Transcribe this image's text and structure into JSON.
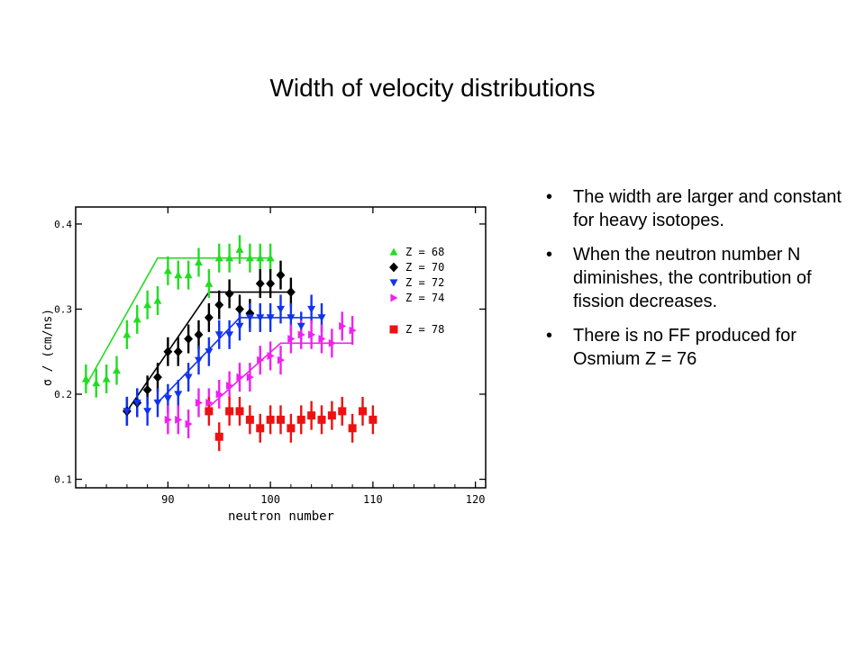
{
  "slide": {
    "title": "Width of velocity distributions",
    "bullets": [
      "The width are larger and constant for heavy isotopes.",
      "When the neutron number N diminishes, the contribution of fission decreases.",
      "There is no FF produced for Osmium Z = 76"
    ]
  },
  "chart_data": {
    "type": "scatter",
    "title": "",
    "xlabel": "neutron number",
    "ylabel": "σ / (cm/ns)",
    "xlim": [
      81,
      121
    ],
    "ylim": [
      0.09,
      0.42
    ],
    "xticks": [
      90,
      100,
      110,
      120
    ],
    "xtick_labels": [
      "90",
      "100",
      "110",
      "120"
    ],
    "yticks": [
      0.1,
      0.2,
      0.3,
      0.4
    ],
    "ytick_labels": [
      "0.1",
      "0.2",
      "0.3",
      "0.4"
    ],
    "grid": false,
    "legend_position": "right",
    "series": [
      {
        "name": "Z = 68",
        "color": "#22dd22",
        "marker": "triangle-up",
        "x": [
          82,
          83,
          84,
          85,
          86,
          87,
          88,
          89,
          90,
          91,
          92,
          93,
          94,
          95,
          96,
          97,
          98,
          99,
          100
        ],
        "y": [
          0.218,
          0.213,
          0.218,
          0.228,
          0.27,
          0.288,
          0.305,
          0.31,
          0.345,
          0.34,
          0.34,
          0.355,
          0.33,
          0.36,
          0.36,
          0.37,
          0.36,
          0.36,
          0.36
        ],
        "fit": [
          [
            82,
            0.21
          ],
          [
            89,
            0.36
          ],
          [
            100,
            0.36
          ]
        ]
      },
      {
        "name": "Z = 70",
        "color": "#000000",
        "marker": "diamond",
        "x": [
          86,
          87,
          88,
          89,
          90,
          91,
          92,
          93,
          94,
          95,
          96,
          97,
          98,
          99,
          100,
          101,
          102
        ],
        "y": [
          0.18,
          0.19,
          0.205,
          0.22,
          0.25,
          0.25,
          0.265,
          0.27,
          0.29,
          0.305,
          0.318,
          0.3,
          0.295,
          0.33,
          0.33,
          0.34,
          0.32
        ],
        "fit": [
          [
            86,
            0.18
          ],
          [
            94,
            0.32
          ],
          [
            102,
            0.32
          ]
        ]
      },
      {
        "name": "Z = 72",
        "color": "#1133ee",
        "marker": "triangle-down",
        "x": [
          86,
          87,
          88,
          89,
          90,
          91,
          92,
          93,
          94,
          95,
          96,
          97,
          98,
          99,
          100,
          101,
          102,
          103,
          104,
          105
        ],
        "y": [
          0.18,
          0.19,
          0.18,
          0.19,
          0.195,
          0.2,
          0.22,
          0.24,
          0.25,
          0.27,
          0.27,
          0.28,
          0.29,
          0.29,
          0.29,
          0.3,
          0.29,
          0.28,
          0.3,
          0.29
        ],
        "fit": [
          [
            89,
            0.19
          ],
          [
            97,
            0.29
          ],
          [
            105,
            0.29
          ]
        ]
      },
      {
        "name": "Z = 74",
        "color": "#ee22ee",
        "marker": "triangle-right",
        "x": [
          90,
          91,
          92,
          93,
          94,
          95,
          96,
          97,
          98,
          99,
          100,
          101,
          102,
          103,
          104,
          105,
          106,
          107,
          108
        ],
        "y": [
          0.17,
          0.17,
          0.165,
          0.19,
          0.19,
          0.2,
          0.21,
          0.22,
          0.22,
          0.24,
          0.245,
          0.24,
          0.265,
          0.27,
          0.27,
          0.265,
          0.26,
          0.28,
          0.275
        ],
        "fit": [
          [
            94,
            0.185
          ],
          [
            101,
            0.26
          ],
          [
            108,
            0.26
          ]
        ]
      },
      {
        "name": "Z = 78",
        "color": "#ee1111",
        "marker": "square",
        "x": [
          94,
          95,
          96,
          97,
          98,
          99,
          100,
          101,
          102,
          103,
          104,
          105,
          106,
          107,
          108,
          109,
          110
        ],
        "y": [
          0.18,
          0.15,
          0.18,
          0.18,
          0.17,
          0.16,
          0.17,
          0.17,
          0.16,
          0.17,
          0.175,
          0.17,
          0.175,
          0.18,
          0.16,
          0.18,
          0.17
        ],
        "fit": []
      }
    ]
  }
}
